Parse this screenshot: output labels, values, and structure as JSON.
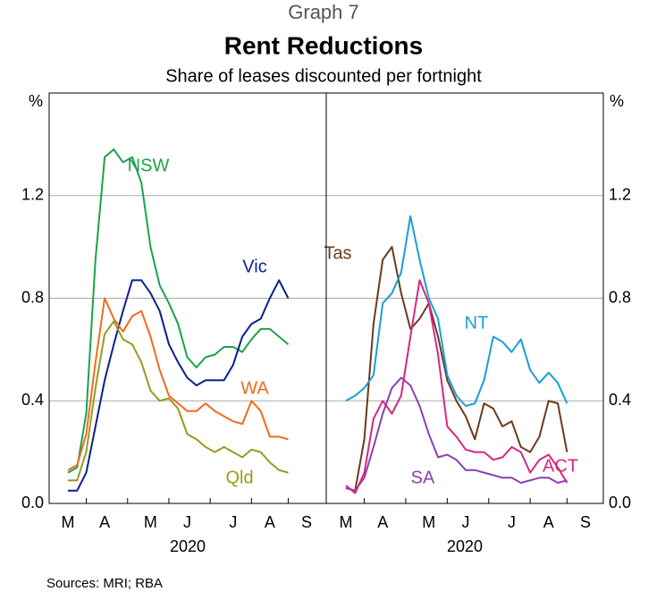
{
  "header": {
    "graph_number": "Graph 7",
    "title": "Rent Reductions",
    "subtitle": "Share of leases discounted per fortnight"
  },
  "source": "Sources: MRI; RBA",
  "y_unit": "%",
  "chart_data": [
    {
      "type": "line",
      "xlabel": "2020",
      "categories": [
        "M",
        null,
        null,
        null,
        "A",
        null,
        null,
        null,
        null,
        "M",
        null,
        null,
        null,
        "J",
        null,
        null,
        null,
        null,
        "J",
        null,
        null,
        null,
        "A",
        null,
        null,
        null,
        "S"
      ],
      "ylim": [
        0,
        1.6
      ],
      "yticks": [
        {
          "value": 0,
          "label": "0.0"
        },
        0.4,
        0.8,
        1.2
      ],
      "grid": true,
      "y_axis_side": "left",
      "series": [
        {
          "name": "NSW",
          "color": "#1aa34a",
          "values": [
            0.12,
            0.14,
            0.35,
            0.95,
            1.35,
            1.38,
            1.33,
            1.35,
            1.25,
            1.0,
            0.85,
            0.78,
            0.7,
            0.57,
            0.53,
            0.57,
            0.58,
            0.61,
            0.61,
            0.59,
            0.64,
            0.68,
            0.68,
            0.65,
            0.62,
            null,
            null
          ]
        },
        {
          "name": "Vic",
          "color": "#0a1f8f",
          "values": [
            0.05,
            0.05,
            0.12,
            0.3,
            0.48,
            0.62,
            0.75,
            0.87,
            0.87,
            0.82,
            0.75,
            0.62,
            0.55,
            0.49,
            0.46,
            0.48,
            0.48,
            0.48,
            0.54,
            0.65,
            0.7,
            0.72,
            0.8,
            0.87,
            0.8,
            null,
            null
          ]
        },
        {
          "name": "WA",
          "color": "#f26b1d",
          "values": [
            0.13,
            0.15,
            0.27,
            0.55,
            0.8,
            0.72,
            0.67,
            0.73,
            0.75,
            0.65,
            0.52,
            0.42,
            0.39,
            0.36,
            0.36,
            0.39,
            0.36,
            0.34,
            0.32,
            0.31,
            0.4,
            0.36,
            0.26,
            0.26,
            0.25,
            null,
            null
          ]
        },
        {
          "name": "Qld",
          "color": "#9a9a1e",
          "values": [
            0.09,
            0.09,
            0.2,
            0.45,
            0.66,
            0.71,
            0.64,
            0.62,
            0.55,
            0.44,
            0.4,
            0.41,
            0.37,
            0.27,
            0.25,
            0.22,
            0.2,
            0.22,
            0.2,
            0.18,
            0.21,
            0.2,
            0.16,
            0.13,
            0.12,
            null,
            null
          ]
        }
      ]
    },
    {
      "type": "line",
      "xlabel": "2020",
      "categories": [
        "M",
        null,
        null,
        null,
        "A",
        null,
        null,
        null,
        null,
        "M",
        null,
        null,
        null,
        "J",
        null,
        null,
        null,
        null,
        "J",
        null,
        null,
        null,
        "A",
        null,
        null,
        null,
        "S"
      ],
      "ylim": [
        0,
        1.6
      ],
      "yticks": [
        {
          "value": 0,
          "label": "0.0"
        },
        0.4,
        0.8,
        1.2
      ],
      "grid": true,
      "y_axis_side": "right",
      "series": [
        {
          "name": "Tas",
          "color": "#6b3a1e",
          "values": [
            0.06,
            0.05,
            0.25,
            0.7,
            0.95,
            1.0,
            0.82,
            0.68,
            0.72,
            0.78,
            0.65,
            0.48,
            0.4,
            0.34,
            0.25,
            0.39,
            0.37,
            0.3,
            0.32,
            0.22,
            0.2,
            0.26,
            0.4,
            0.39,
            0.2,
            null,
            null
          ]
        },
        {
          "name": "NT",
          "color": "#1a9ed4",
          "values": [
            0.4,
            0.42,
            0.45,
            0.5,
            0.78,
            0.82,
            0.9,
            1.12,
            0.95,
            0.8,
            0.72,
            0.5,
            0.42,
            0.38,
            0.39,
            0.48,
            0.65,
            0.63,
            0.59,
            0.64,
            0.52,
            0.47,
            0.51,
            0.47,
            0.39,
            null,
            null
          ]
        },
        {
          "name": "SA",
          "color": "#8b3fb5",
          "values": [
            0.06,
            0.05,
            0.1,
            0.22,
            0.35,
            0.45,
            0.49,
            0.46,
            0.38,
            0.27,
            0.18,
            0.19,
            0.17,
            0.13,
            0.13,
            0.12,
            0.11,
            0.1,
            0.1,
            0.08,
            0.09,
            0.1,
            0.1,
            0.08,
            0.09,
            null,
            null
          ]
        },
        {
          "name": "ACT",
          "color": "#d8267f",
          "values": [
            0.07,
            0.04,
            0.12,
            0.33,
            0.4,
            0.35,
            0.42,
            0.65,
            0.87,
            0.78,
            0.58,
            0.3,
            0.26,
            0.21,
            0.2,
            0.2,
            0.17,
            0.18,
            0.22,
            0.2,
            0.12,
            0.17,
            0.19,
            0.14,
            0.08,
            null,
            null
          ]
        }
      ]
    }
  ]
}
